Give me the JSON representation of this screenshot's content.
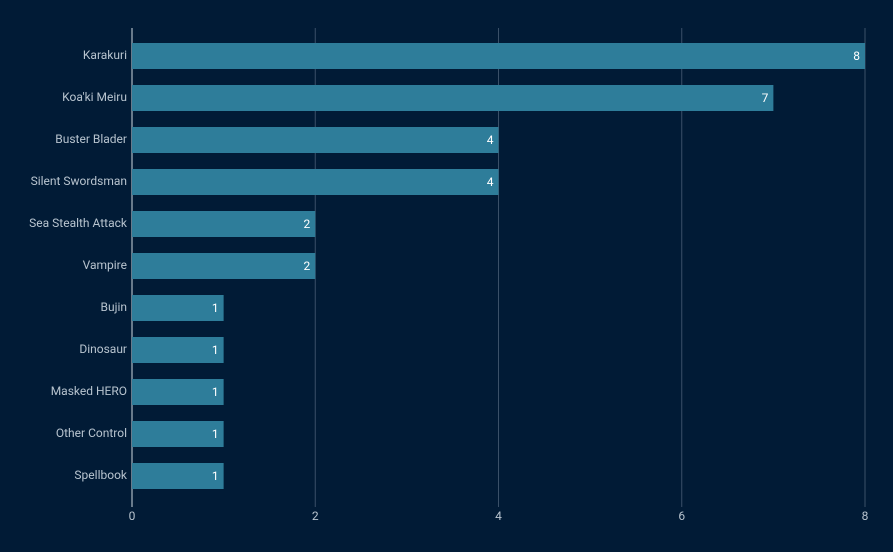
{
  "chart_data": {
    "type": "bar",
    "orientation": "horizontal",
    "categories": [
      "Karakuri",
      "Koa'ki Meiru",
      "Buster Blader",
      "Silent Swordsman",
      "Sea Stealth Attack",
      "Vampire",
      "Bujin",
      "Dinosaur",
      "Masked HERO",
      "Other Control",
      "Spellbook"
    ],
    "values": [
      8,
      7,
      4,
      4,
      2,
      2,
      1,
      1,
      1,
      1,
      1
    ],
    "color": "#2e7d9a",
    "xlim": [
      0,
      8
    ],
    "xticks": [
      0,
      2,
      4,
      6,
      8
    ],
    "grid": true
  }
}
